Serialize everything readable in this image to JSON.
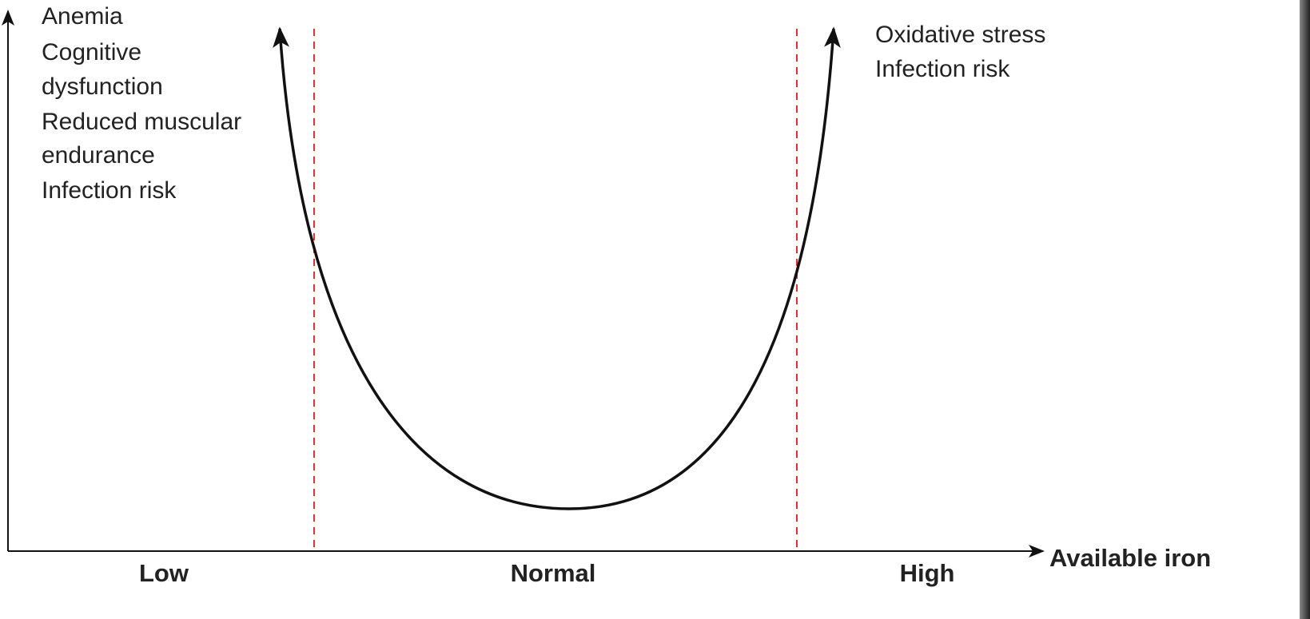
{
  "left_effects": [
    "Anemia",
    "Cognitive",
    "dysfunction",
    "Reduced muscular",
    "endurance",
    "Infection risk"
  ],
  "right_effects": [
    "Oxidative stress",
    "Infection risk"
  ],
  "x_axis": {
    "label": "Available iron",
    "levels": [
      "Low",
      "Normal",
      "High"
    ]
  }
}
